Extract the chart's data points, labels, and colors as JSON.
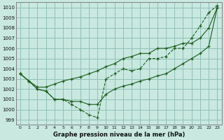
{
  "title": "Graphe pression niveau de la mer (hPa)",
  "bg_color": "#c8e8e0",
  "grid_color": "#90c0b8",
  "line_color": "#1a5c18",
  "xlim": [
    -0.5,
    23.5
  ],
  "ylim": [
    998.5,
    1010.5
  ],
  "xticks": [
    0,
    1,
    2,
    3,
    4,
    5,
    6,
    7,
    8,
    9,
    10,
    11,
    12,
    13,
    14,
    15,
    16,
    17,
    18,
    19,
    20,
    21,
    22,
    23
  ],
  "yticks": [
    999,
    1000,
    1001,
    1002,
    1003,
    1004,
    1005,
    1006,
    1007,
    1008,
    1009,
    1010
  ],
  "series1": [
    1003.5,
    1002.8,
    1002.0,
    1001.8,
    1001.0,
    1001.0,
    1000.8,
    1000.8,
    1000.5,
    1000.5,
    1001.5,
    1002.0,
    1002.3,
    1002.5,
    1002.8,
    1003.0,
    1003.3,
    1003.5,
    1004.0,
    1004.5,
    1005.0,
    1005.5,
    1006.2,
    1010.0
  ],
  "series2": [
    1003.5,
    1002.8,
    1002.0,
    1001.8,
    1001.0,
    1001.0,
    1000.5,
    1000.0,
    999.5,
    999.2,
    1003.0,
    1003.5,
    1004.0,
    1003.8,
    1004.0,
    1005.0,
    1005.0,
    1005.2,
    1006.0,
    1006.0,
    1007.0,
    1008.2,
    1009.5,
    1010.2
  ],
  "series3": [
    1003.5,
    1002.8,
    1002.2,
    1002.2,
    1002.5,
    1002.8,
    1003.0,
    1003.2,
    1003.5,
    1003.8,
    1004.2,
    1004.5,
    1005.0,
    1005.2,
    1005.5,
    1005.5,
    1006.0,
    1006.0,
    1006.2,
    1006.5,
    1006.5,
    1007.0,
    1008.0,
    1010.0
  ]
}
